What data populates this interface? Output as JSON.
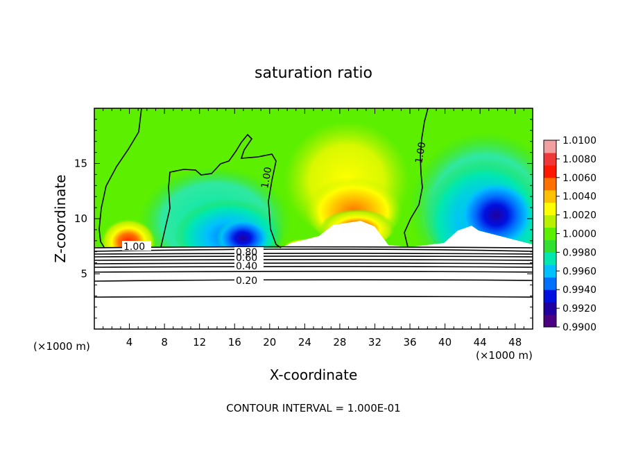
{
  "chart_data": {
    "type": "heatmap",
    "title": "saturation ratio",
    "xlabel": "X-coordinate",
    "ylabel": "Z-coordinate",
    "x_unit": "(×1000 m)",
    "x_unit_right": "(×1000 m)",
    "xlim": [
      0,
      50
    ],
    "ylim": [
      0,
      20
    ],
    "x_ticks": [
      4,
      8,
      12,
      16,
      20,
      24,
      28,
      32,
      36,
      40,
      44,
      48
    ],
    "y_ticks": [
      5,
      10,
      15
    ],
    "colorbar": {
      "min": 0.99,
      "max": 1.01,
      "labels": [
        "1.0100",
        "1.0080",
        "1.0060",
        "1.0040",
        "1.0020",
        "1.0000",
        "0.9980",
        "0.9960",
        "0.9940",
        "0.9920",
        "0.9900"
      ],
      "colors": [
        "#4b0082",
        "#2000a0",
        "#0010e0",
        "#0070ff",
        "#00c0ff",
        "#00e8b0",
        "#30e030",
        "#5cf000",
        "#b8f000",
        "#ffff00",
        "#ffc000",
        "#ff7000",
        "#ff1800",
        "#f03838",
        "#f0a0a0"
      ]
    },
    "contour_labels": [
      "1.00",
      "1.00",
      "1.00",
      "0.80",
      "0.60",
      "0.40",
      "0.20"
    ],
    "annotation": "CONTOUR INTERVAL = 1.000E-01"
  }
}
